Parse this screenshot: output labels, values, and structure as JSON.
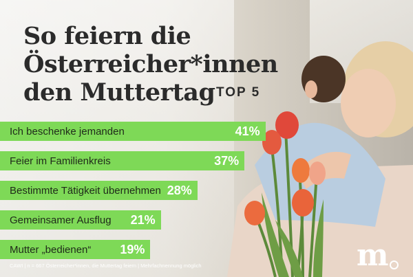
{
  "title_lines": [
    "So feiern die",
    "Österreicher*innen",
    "den Muttertag"
  ],
  "badge": "TOP 5",
  "chart_data": {
    "type": "bar",
    "orientation": "horizontal",
    "categories": [
      "Ich beschenke jemanden",
      "Feier im Familienkreis",
      "Bestimmte Tätigkeit übernehmen",
      "Gemeinsamer Ausflug",
      "Mutter „bedienen“"
    ],
    "values": [
      41,
      37,
      28,
      21,
      19
    ],
    "value_labels": [
      "41%",
      "37%",
      "28%",
      "21%",
      "19%"
    ],
    "bar_color": "#7ed957"
  },
  "footnote": "CAWI | n = 667 Österreicher*innen, die Muttertag feiern | Mehrfachnennung möglich",
  "logo": "m"
}
